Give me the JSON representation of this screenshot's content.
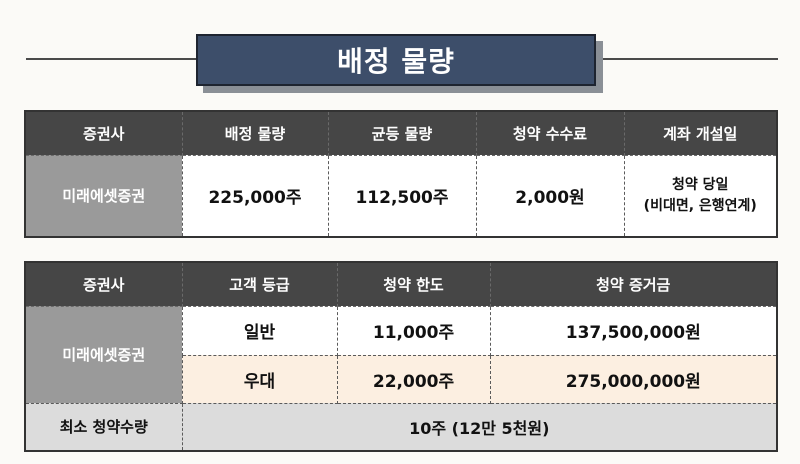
{
  "title": "배정 물량",
  "table1": {
    "headers": [
      "증권사",
      "배정 물량",
      "균등 물량",
      "청약 수수료",
      "계좌 개설일"
    ],
    "row": {
      "broker": "미래에셋증권",
      "allocation": "225,000주",
      "equal_allocation": "112,500주",
      "fee": "2,000원",
      "account_open_line1": "청약 당일",
      "account_open_line2": "(비대면, 은행연계)"
    }
  },
  "table2": {
    "headers": [
      "증권사",
      "고객 등급",
      "청약 한도",
      "청약 증거금"
    ],
    "broker": "미래에셋증권",
    "rows": [
      {
        "grade": "일반",
        "limit": "11,000주",
        "deposit": "137,500,000원"
      },
      {
        "grade": "우대",
        "limit": "22,000주",
        "deposit": "275,000,000원"
      }
    ],
    "min_label": "최소 청약수량",
    "min_value": "10주 (12만 5천원)"
  }
}
